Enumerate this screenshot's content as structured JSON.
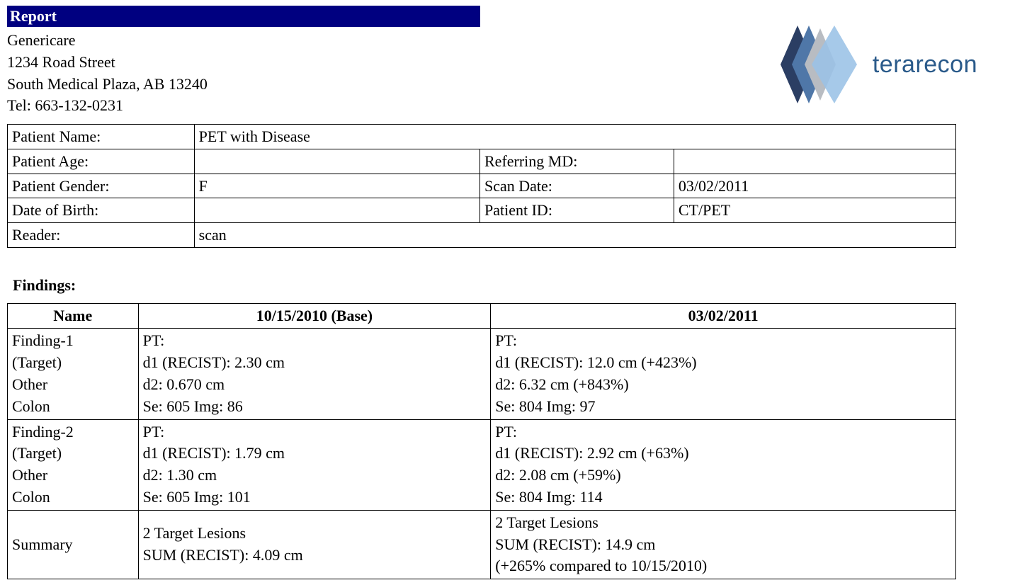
{
  "colors": {
    "bar_bg": "#000080",
    "bar_text": "#ffffff",
    "logo_text": "#2a5a8a",
    "logo_dark": "#2b3e63",
    "logo_mid": "#4f77a8",
    "logo_gray": "#b8bcc2",
    "logo_light": "#9ac2e6"
  },
  "header": {
    "bar_title": "Report",
    "org_name": "Genericare",
    "street": "1234 Road Street",
    "city_line": "South Medical Plaza, AB 13240",
    "tel": "Tel: 663-132-0231",
    "logo_text": "terarecon"
  },
  "info": {
    "labels": {
      "patient_name": "Patient Name:",
      "patient_age": "Patient Age:",
      "patient_gender": "Patient Gender:",
      "dob": "Date of Birth:",
      "reader": "Reader:",
      "referring_md": "Referring MD:",
      "scan_date": "Scan Date:",
      "patient_id": "Patient ID:"
    },
    "values": {
      "patient_name": "PET with Disease",
      "patient_age": "",
      "patient_gender": "F",
      "dob": "",
      "reader": "scan",
      "referring_md": "",
      "scan_date": "03/02/2011",
      "patient_id": "CT/PET"
    }
  },
  "findings": {
    "heading": "Findings:",
    "columns": {
      "name": "Name",
      "base": "10/15/2010 (Base)",
      "date": "03/02/2011"
    },
    "rows": [
      {
        "name": [
          "Finding-1",
          "(Target)",
          "Other",
          "Colon"
        ],
        "base": [
          "PT:",
          "d1 (RECIST): 2.30 cm",
          "d2: 0.670 cm",
          "Se: 605 Img: 86"
        ],
        "date": [
          "PT:",
          "d1 (RECIST): 12.0 cm (+423%)",
          "d2: 6.32 cm (+843%)",
          "Se: 804 Img: 97"
        ]
      },
      {
        "name": [
          "Finding-2",
          "(Target)",
          "Other",
          "Colon"
        ],
        "base": [
          "PT:",
          "d1 (RECIST): 1.79 cm",
          "d2: 1.30 cm",
          "Se: 605 Img: 101"
        ],
        "date": [
          "PT:",
          "d1 (RECIST): 2.92 cm (+63%)",
          "d2: 2.08 cm (+59%)",
          "Se: 804 Img: 114"
        ]
      },
      {
        "name": [
          "Summary"
        ],
        "base": [
          "2 Target Lesions",
          "SUM (RECIST): 4.09 cm"
        ],
        "date": [
          "2 Target Lesions",
          "SUM (RECIST): 14.9 cm",
          "(+265% compared to 10/15/2010)"
        ]
      }
    ]
  }
}
